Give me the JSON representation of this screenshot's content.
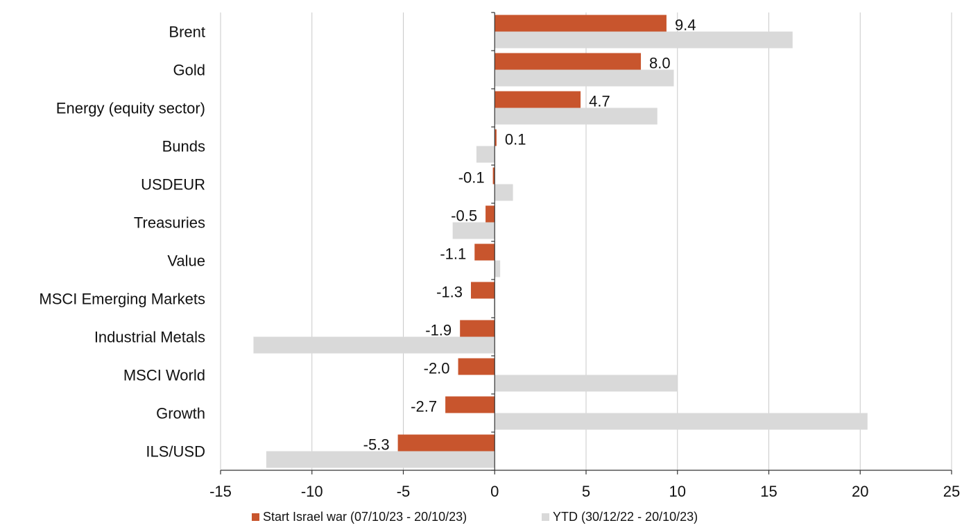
{
  "chart_data": {
    "type": "bar",
    "orientation": "horizontal",
    "categories": [
      "Brent",
      "Gold",
      "Energy (equity sector)",
      "Bunds",
      "USDEUR",
      "Treasuries",
      "Value",
      "MSCI Emerging Markets",
      "Industrial Metals",
      "MSCI World",
      "Growth",
      "ILS/USD"
    ],
    "series": [
      {
        "name": "Start Israel war (07/10/23 - 20/10/23)",
        "color": "#c8552d",
        "values": [
          9.4,
          8.0,
          4.7,
          0.1,
          -0.1,
          -0.5,
          -1.1,
          -1.3,
          -1.9,
          -2.0,
          -2.7,
          -5.3
        ],
        "labels": [
          "9.4",
          "8.0",
          "4.7",
          "0.1",
          "-0.1",
          "-0.5",
          "-1.1",
          "-1.3",
          "-1.9",
          "-2.0",
          "-2.7",
          "-5.3"
        ]
      },
      {
        "name": "YTD (30/12/22 - 20/10/23)",
        "color": "#d9d9d9",
        "values": [
          16.3,
          9.8,
          8.9,
          -1.0,
          1.0,
          -2.3,
          0.3,
          -0.05,
          -13.2,
          10.0,
          20.4,
          -12.5
        ]
      }
    ],
    "xlim": [
      -15,
      25
    ],
    "xticks": [
      "-15",
      "-10",
      "-5",
      "0",
      "5",
      "10",
      "15",
      "20",
      "25"
    ],
    "grid": true,
    "legend_position": "bottom"
  }
}
